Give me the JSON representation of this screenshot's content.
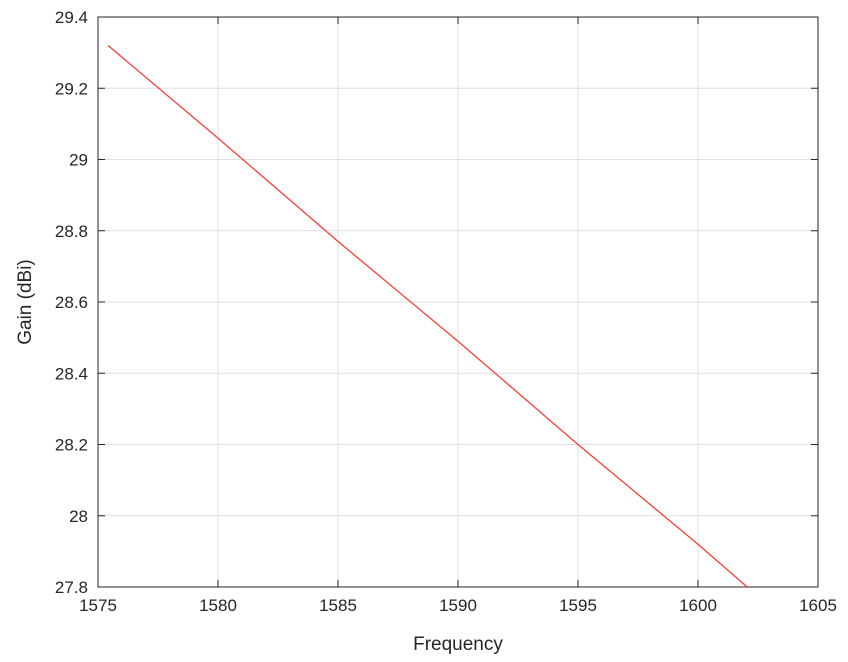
{
  "chart_data": {
    "type": "line",
    "title": "",
    "xlabel": "Frequency",
    "ylabel": "Gain (dBi)",
    "xlim": [
      1575,
      1605
    ],
    "ylim": [
      27.8,
      29.4
    ],
    "xticks": [
      1575,
      1580,
      1585,
      1590,
      1595,
      1600,
      1605
    ],
    "yticks": [
      27.8,
      28,
      28.2,
      28.4,
      28.6,
      28.8,
      29,
      29.2,
      29.4
    ],
    "xtick_labels": [
      "1575",
      "1580",
      "1585",
      "1590",
      "1595",
      "1600",
      "1605"
    ],
    "ytick_labels": [
      "27.8",
      "28",
      "28.2",
      "28.4",
      "28.6",
      "28.8",
      "29",
      "29.2",
      "29.4"
    ],
    "grid": true,
    "box": true,
    "series": [
      {
        "color": "#ff3b3b",
        "x": [
          1575.42,
          1580,
          1585,
          1590,
          1595,
          1600,
          1602.05
        ],
        "y": [
          29.32,
          29.06,
          28.77,
          28.49,
          28.2,
          27.92,
          27.8
        ]
      }
    ]
  }
}
